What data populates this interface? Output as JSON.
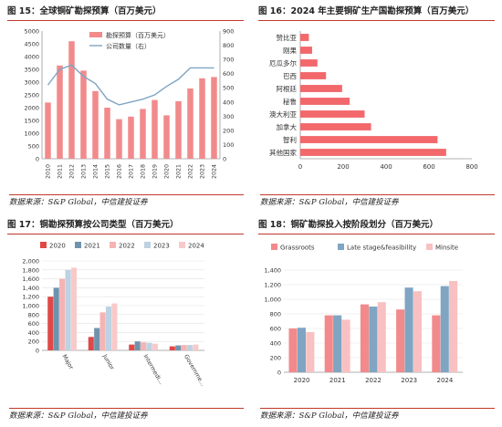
{
  "panels": [
    {
      "title": "图 15：全球铜矿勘探预算（百万美元）",
      "source": "数据来源：S&P Global，中信建投证券"
    },
    {
      "title": "图 16：2024 年主要铜矿生产国勘探预算（百万美元）",
      "source": "数据来源：S&P Global，中信建投证券"
    },
    {
      "title": "图 17：铜勘探预算按公司类型（百万美元）",
      "source": "数据来源：S&P Global，中信建投证券"
    },
    {
      "title": "图 18：铜矿勘探投入按阶段划分（百万美元）",
      "source": "数据来源：S&P Global，中信建投证券"
    }
  ],
  "chart_data": [
    {
      "type": "bar",
      "categories": [
        "2010",
        "2011",
        "2012",
        "2013",
        "2014",
        "2015",
        "2016",
        "2017",
        "2018",
        "2019",
        "2020",
        "2021",
        "2022",
        "2023",
        "2024"
      ],
      "series": [
        {
          "name": "勘探预算（百万美元）",
          "type": "bar",
          "values": [
            2200,
            3650,
            4600,
            3450,
            2650,
            2000,
            1550,
            1650,
            1950,
            2300,
            1700,
            2250,
            2750,
            3150,
            3200
          ],
          "axis": "left",
          "color": "#f28a8c"
        },
        {
          "name": "公司数量（右）",
          "type": "line",
          "values": [
            520,
            630,
            660,
            580,
            530,
            420,
            380,
            400,
            420,
            450,
            510,
            560,
            640,
            640,
            640
          ],
          "axis": "right",
          "color": "#7fa5c2"
        }
      ],
      "ylim": [
        0,
        5000
      ],
      "yticks": [
        0,
        500,
        1000,
        1500,
        2000,
        2500,
        3000,
        3500,
        4000,
        4500,
        5000
      ],
      "y2lim": [
        0,
        900
      ],
      "y2ticks": [
        0,
        100,
        200,
        300,
        400,
        500,
        600,
        700,
        800,
        900
      ],
      "legend": "top-right"
    },
    {
      "type": "bar",
      "orientation": "horizontal",
      "categories": [
        "赞比亚",
        "刚果",
        "厄瓜多尔",
        "巴西",
        "阿根廷",
        "秘鲁",
        "澳大利亚",
        "加拿大",
        "智利",
        "其他国家"
      ],
      "values": [
        40,
        55,
        80,
        120,
        195,
        230,
        300,
        330,
        640,
        680
      ],
      "xlim": [
        0,
        800
      ],
      "xticks": [
        0,
        200,
        400,
        600,
        800
      ],
      "color": "#f2686b"
    },
    {
      "type": "bar",
      "categories": [
        "Major",
        "Junior",
        "Intermediate",
        "Government"
      ],
      "category_labels": [
        "Major",
        "Junior",
        "Intermedi…",
        "Governme…"
      ],
      "series": [
        {
          "name": "2020",
          "values": [
            1200,
            300,
            130,
            90
          ],
          "color": "#e04848"
        },
        {
          "name": "2021",
          "values": [
            1400,
            500,
            200,
            110
          ],
          "color": "#6f93ad"
        },
        {
          "name": "2022",
          "values": [
            1600,
            850,
            180,
            120
          ],
          "color": "#f6b3b3"
        },
        {
          "name": "2023",
          "values": [
            1800,
            980,
            170,
            120
          ],
          "color": "#bdd2e2"
        },
        {
          "name": "2024",
          "values": [
            1850,
            1050,
            150,
            130
          ],
          "color": "#f9c9c9"
        }
      ],
      "ylim": [
        0,
        2000
      ],
      "yticks": [
        0,
        200,
        400,
        600,
        800,
        1000,
        1200,
        1400,
        1600,
        1800,
        2000
      ],
      "ytick_labels": [
        "0",
        "200",
        "400",
        "600",
        "800",
        "1,000",
        "1,200",
        "1,400",
        "1,600",
        "1,800",
        "2,000"
      ],
      "legend": "top"
    },
    {
      "type": "bar",
      "categories": [
        "2020",
        "2021",
        "2022",
        "2023",
        "2024"
      ],
      "series": [
        {
          "name": "Grassroots",
          "values": [
            600,
            780,
            930,
            860,
            780
          ],
          "color": "#f28a8c"
        },
        {
          "name": "Late stage&feasibility",
          "values": [
            610,
            780,
            900,
            1160,
            1180
          ],
          "color": "#7fa5c2"
        },
        {
          "name": "Minsite",
          "values": [
            550,
            720,
            960,
            1110,
            1250
          ],
          "color": "#f9c0c2"
        }
      ],
      "ylim": [
        0,
        1400
      ],
      "yticks": [
        0,
        200,
        400,
        600,
        800,
        1000,
        1200,
        1400
      ],
      "ytick_labels": [
        "0",
        "200",
        "400",
        "600",
        "800",
        "1,000",
        "1,200",
        "1,400"
      ],
      "legend": "top"
    }
  ]
}
